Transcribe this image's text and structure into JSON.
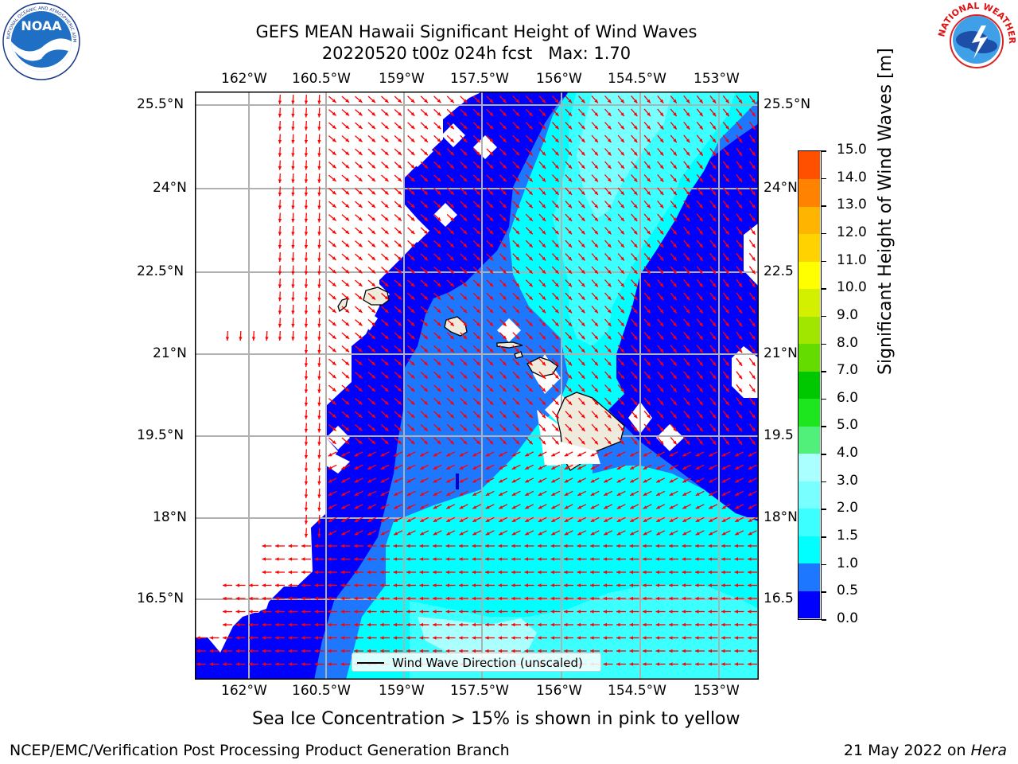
{
  "title": {
    "line1": "GEFS MEAN Hawaii Significant Height of Wind Waves",
    "line2": "20220520 t00z 024h fcst   Max: 1.70"
  },
  "logos": {
    "left": "NOAA",
    "left_ring": "NATIONAL OCEANIC AND ATMOSPHERIC ADMINISTRATION · U.S. DEPARTMENT OF COMMERCE",
    "right_ring": "NATIONAL WEATHER SERVICE"
  },
  "axes": {
    "lon_labels": [
      "162°W",
      "160.5°W",
      "159°W",
      "157.5°W",
      "156°W",
      "154.5°W",
      "153°W"
    ],
    "lat_left_labels": [
      "25.5°N",
      "24°N",
      "22.5°N",
      "21°N",
      "19.5°N",
      "18°N",
      "16.5°N"
    ],
    "lat_right_labels": [
      "25.5°N",
      "24°N",
      "22.5",
      "21°N",
      "19.5",
      "18°N",
      "16.5"
    ]
  },
  "legend": {
    "label": "Wind Wave Direction (unscaled)"
  },
  "colorbar": {
    "label": "Significant Height of Wind Waves [m]",
    "ticks": [
      "0.0",
      "0.5",
      "1.0",
      "1.5",
      "2.0",
      "3.0",
      "4.0",
      "5.0",
      "6.0",
      "7.0",
      "8.0",
      "9.0",
      "10.0",
      "11.0",
      "12.0",
      "13.0",
      "14.0",
      "15.0"
    ],
    "colors": [
      "#0000ff",
      "#1e78ff",
      "#00ffff",
      "#3cffff",
      "#78ffff",
      "#aaffff",
      "#50f07a",
      "#1ee61e",
      "#00c800",
      "#64dc00",
      "#a0e600",
      "#d2f000",
      "#ffff00",
      "#ffd200",
      "#ffb400",
      "#ff8200",
      "#ff5000",
      "#ff0000"
    ]
  },
  "note": "Sea Ice Concentration > 15% is shown in pink to yellow",
  "footer": {
    "left": "NCEP/EMC/Verification Post Processing Product Generation Branch",
    "right_date": "21 May 2022 on ",
    "right_host": "Hera"
  },
  "map_data": {
    "lon_range": [
      -162.95,
      -152.7
    ],
    "lat_range": [
      15.3,
      26.0
    ],
    "max_wave_height_m": 1.7,
    "arrow_color": "#ff0000",
    "land_color": "#eeebdc"
  }
}
